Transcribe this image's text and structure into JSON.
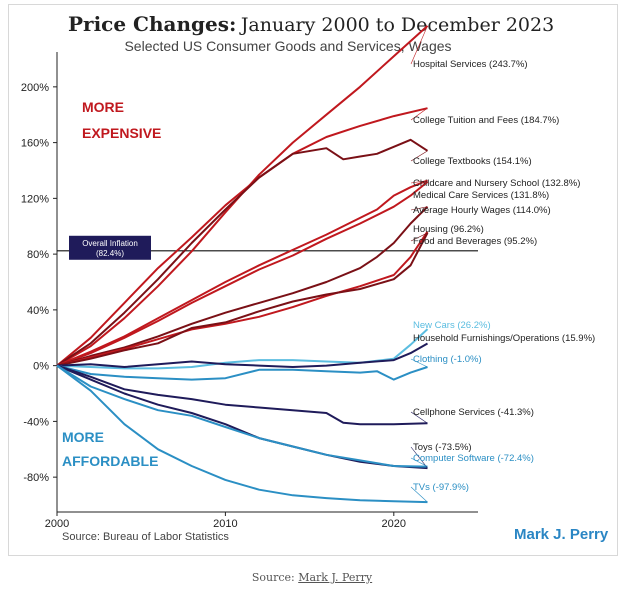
{
  "header": {
    "title_bold": "Price Changes:",
    "title_rest": "January 2000 to December 2023",
    "subtitle": "Selected US Consumer Goods and Services, Wages"
  },
  "footer": {
    "source": "Source: Bureau of Labor Statistics",
    "author": "Mark J. Perry",
    "caption_prefix": "Source: ",
    "caption_link": "Mark J. Perry"
  },
  "colors": {
    "red": "#c0181e",
    "dark_red": "#7a1016",
    "navy": "#1f1b5a",
    "blue": "#2b8fc4",
    "light_blue": "#5bbde0"
  },
  "chart_data": {
    "type": "line",
    "title": "Price Changes: January 2000 to December 2023",
    "subtitle": "Selected US Consumer Goods and Services, Wages",
    "xlabel": "",
    "ylabel": "",
    "x_ticks": [
      "2000",
      "2010",
      "2020"
    ],
    "y_ticks": [
      "200%",
      "160%",
      "120%",
      "80%",
      "40%",
      "0%",
      "-40%",
      "-80%"
    ],
    "y_tick_values": [
      200,
      160,
      120,
      80,
      40,
      0,
      -40,
      -80
    ],
    "xlim": [
      2000,
      2025
    ],
    "ylim": [
      -105,
      225
    ],
    "grid": false,
    "reference_line": {
      "value": 82.4,
      "label_line1": "Overall Inflation",
      "label_line2": "(82.4%)"
    },
    "annotations": [
      {
        "text1": "MORE",
        "text2": "EXPENSIVE",
        "color": "#c0181e"
      },
      {
        "text1": "MORE",
        "text2": "AFFORDABLE",
        "color": "#2b8fc4"
      }
    ],
    "series": [
      {
        "name": "Hospital Services (243.7%)",
        "color": "#c0181e",
        "points": [
          [
            2000,
            0
          ],
          [
            2002,
            14
          ],
          [
            2004,
            34
          ],
          [
            2006,
            57
          ],
          [
            2008,
            82
          ],
          [
            2010,
            110
          ],
          [
            2012,
            137
          ],
          [
            2014,
            160
          ],
          [
            2016,
            180
          ],
          [
            2018,
            200
          ],
          [
            2020,
            222
          ],
          [
            2022,
            243.7
          ]
        ]
      },
      {
        "name": "College Tuition and Fees (184.7%)",
        "color": "#c0181e",
        "points": [
          [
            2000,
            0
          ],
          [
            2002,
            20
          ],
          [
            2004,
            45
          ],
          [
            2006,
            70
          ],
          [
            2008,
            92
          ],
          [
            2010,
            115
          ],
          [
            2012,
            135
          ],
          [
            2014,
            152
          ],
          [
            2016,
            164
          ],
          [
            2018,
            172
          ],
          [
            2020,
            179
          ],
          [
            2022,
            184.7
          ]
        ]
      },
      {
        "name": "College Textbooks (154.1%)",
        "color": "#7a1016",
        "points": [
          [
            2000,
            0
          ],
          [
            2002,
            16
          ],
          [
            2004,
            38
          ],
          [
            2006,
            62
          ],
          [
            2008,
            88
          ],
          [
            2010,
            112
          ],
          [
            2012,
            135
          ],
          [
            2014,
            152
          ],
          [
            2016,
            156
          ],
          [
            2017,
            148
          ],
          [
            2018,
            150
          ],
          [
            2019,
            152
          ],
          [
            2020,
            157
          ],
          [
            2021,
            162
          ],
          [
            2022,
            154.1
          ]
        ]
      },
      {
        "name": "Childcare and Nursery School (132.8%)",
        "color": "#c0181e",
        "points": [
          [
            2000,
            0
          ],
          [
            2002,
            10
          ],
          [
            2004,
            21
          ],
          [
            2006,
            34
          ],
          [
            2008,
            47
          ],
          [
            2010,
            60
          ],
          [
            2012,
            72
          ],
          [
            2014,
            83
          ],
          [
            2016,
            94
          ],
          [
            2018,
            106
          ],
          [
            2019,
            112
          ],
          [
            2020,
            122
          ],
          [
            2021,
            128
          ],
          [
            2022,
            132.8
          ]
        ]
      },
      {
        "name": "Medical Care Services (131.8%)",
        "color": "#c0181e",
        "points": [
          [
            2000,
            0
          ],
          [
            2002,
            9
          ],
          [
            2004,
            20
          ],
          [
            2006,
            32
          ],
          [
            2008,
            45
          ],
          [
            2010,
            57
          ],
          [
            2012,
            69
          ],
          [
            2014,
            79
          ],
          [
            2016,
            91
          ],
          [
            2018,
            102
          ],
          [
            2020,
            114
          ],
          [
            2021,
            122
          ],
          [
            2022,
            131.8
          ]
        ]
      },
      {
        "name": "Average Hourly Wages (114.0%)",
        "color": "#7a1016",
        "points": [
          [
            2000,
            0
          ],
          [
            2002,
            7
          ],
          [
            2004,
            13
          ],
          [
            2006,
            21
          ],
          [
            2008,
            30
          ],
          [
            2010,
            38
          ],
          [
            2012,
            45
          ],
          [
            2014,
            52
          ],
          [
            2016,
            60
          ],
          [
            2018,
            70
          ],
          [
            2019,
            78
          ],
          [
            2020,
            88
          ],
          [
            2021,
            102
          ],
          [
            2022,
            114.0
          ]
        ]
      },
      {
        "name": "Housing (96.2%)",
        "color": "#c0181e",
        "points": [
          [
            2000,
            0
          ],
          [
            2002,
            6
          ],
          [
            2004,
            12
          ],
          [
            2006,
            19
          ],
          [
            2008,
            26
          ],
          [
            2010,
            30
          ],
          [
            2012,
            35
          ],
          [
            2014,
            42
          ],
          [
            2016,
            50
          ],
          [
            2018,
            57
          ],
          [
            2020,
            65
          ],
          [
            2021,
            78
          ],
          [
            2022,
            96.2
          ]
        ]
      },
      {
        "name": "Food and Beverages (95.2%)",
        "color": "#7a1016",
        "points": [
          [
            2000,
            0
          ],
          [
            2002,
            5
          ],
          [
            2004,
            11
          ],
          [
            2006,
            16
          ],
          [
            2008,
            27
          ],
          [
            2010,
            31
          ],
          [
            2012,
            39
          ],
          [
            2014,
            46
          ],
          [
            2016,
            51
          ],
          [
            2018,
            55
          ],
          [
            2020,
            62
          ],
          [
            2021,
            72
          ],
          [
            2022,
            95.2
          ]
        ]
      },
      {
        "name": "New Cars (26.2%)",
        "color": "#5bbde0",
        "points": [
          [
            2000,
            0
          ],
          [
            2002,
            -1
          ],
          [
            2004,
            -2
          ],
          [
            2006,
            -2
          ],
          [
            2008,
            -1
          ],
          [
            2010,
            2
          ],
          [
            2012,
            4
          ],
          [
            2014,
            4
          ],
          [
            2016,
            3
          ],
          [
            2018,
            2
          ],
          [
            2020,
            5
          ],
          [
            2021,
            15
          ],
          [
            2022,
            26.2
          ]
        ]
      },
      {
        "name": "Household Furnishings/Operations (15.9%)",
        "color": "#1f1b5a",
        "points": [
          [
            2000,
            0
          ],
          [
            2002,
            1
          ],
          [
            2004,
            -1
          ],
          [
            2006,
            1
          ],
          [
            2008,
            3
          ],
          [
            2010,
            1
          ],
          [
            2012,
            0
          ],
          [
            2014,
            -1
          ],
          [
            2016,
            0
          ],
          [
            2018,
            2
          ],
          [
            2020,
            4
          ],
          [
            2021,
            9
          ],
          [
            2022,
            15.9
          ]
        ]
      },
      {
        "name": "Clothing (-1.0%)",
        "color": "#2b8fc4",
        "points": [
          [
            2000,
            0
          ],
          [
            2002,
            -6
          ],
          [
            2004,
            -8
          ],
          [
            2006,
            -9
          ],
          [
            2008,
            -10
          ],
          [
            2010,
            -9
          ],
          [
            2012,
            -3
          ],
          [
            2014,
            -3
          ],
          [
            2016,
            -4
          ],
          [
            2018,
            -5
          ],
          [
            2019,
            -4
          ],
          [
            2020,
            -10
          ],
          [
            2021,
            -5
          ],
          [
            2022,
            -1.0
          ]
        ]
      },
      {
        "name": "Cellphone Services (-41.3%)",
        "color": "#1f1b5a",
        "points": [
          [
            2000,
            0
          ],
          [
            2002,
            -8
          ],
          [
            2004,
            -17
          ],
          [
            2006,
            -21
          ],
          [
            2008,
            -24
          ],
          [
            2010,
            -28
          ],
          [
            2012,
            -30
          ],
          [
            2014,
            -32
          ],
          [
            2016,
            -34
          ],
          [
            2017,
            -41
          ],
          [
            2018,
            -42
          ],
          [
            2020,
            -42
          ],
          [
            2022,
            -41.3
          ]
        ]
      },
      {
        "name": "Toys (-73.5%)",
        "color": "#1f1b5a",
        "points": [
          [
            2000,
            0
          ],
          [
            2002,
            -10
          ],
          [
            2004,
            -20
          ],
          [
            2006,
            -28
          ],
          [
            2008,
            -34
          ],
          [
            2010,
            -42
          ],
          [
            2012,
            -52
          ],
          [
            2014,
            -58
          ],
          [
            2016,
            -64
          ],
          [
            2018,
            -69
          ],
          [
            2020,
            -72
          ],
          [
            2022,
            -73.5
          ]
        ]
      },
      {
        "name": "Computer Software (-72.4%)",
        "color": "#2b8fc4",
        "points": [
          [
            2000,
            0
          ],
          [
            2002,
            -15
          ],
          [
            2004,
            -24
          ],
          [
            2006,
            -32
          ],
          [
            2008,
            -36
          ],
          [
            2010,
            -44
          ],
          [
            2012,
            -52
          ],
          [
            2014,
            -58
          ],
          [
            2016,
            -64
          ],
          [
            2018,
            -68
          ],
          [
            2020,
            -72
          ],
          [
            2022,
            -72.4
          ]
        ]
      },
      {
        "name": "TVs (-97.9%)",
        "color": "#2b8fc4",
        "points": [
          [
            2000,
            0
          ],
          [
            2002,
            -18
          ],
          [
            2004,
            -42
          ],
          [
            2006,
            -60
          ],
          [
            2008,
            -72
          ],
          [
            2010,
            -82
          ],
          [
            2012,
            -89
          ],
          [
            2014,
            -93
          ],
          [
            2016,
            -95
          ],
          [
            2018,
            -96.5
          ],
          [
            2020,
            -97.3
          ],
          [
            2022,
            -97.9
          ]
        ]
      }
    ]
  }
}
